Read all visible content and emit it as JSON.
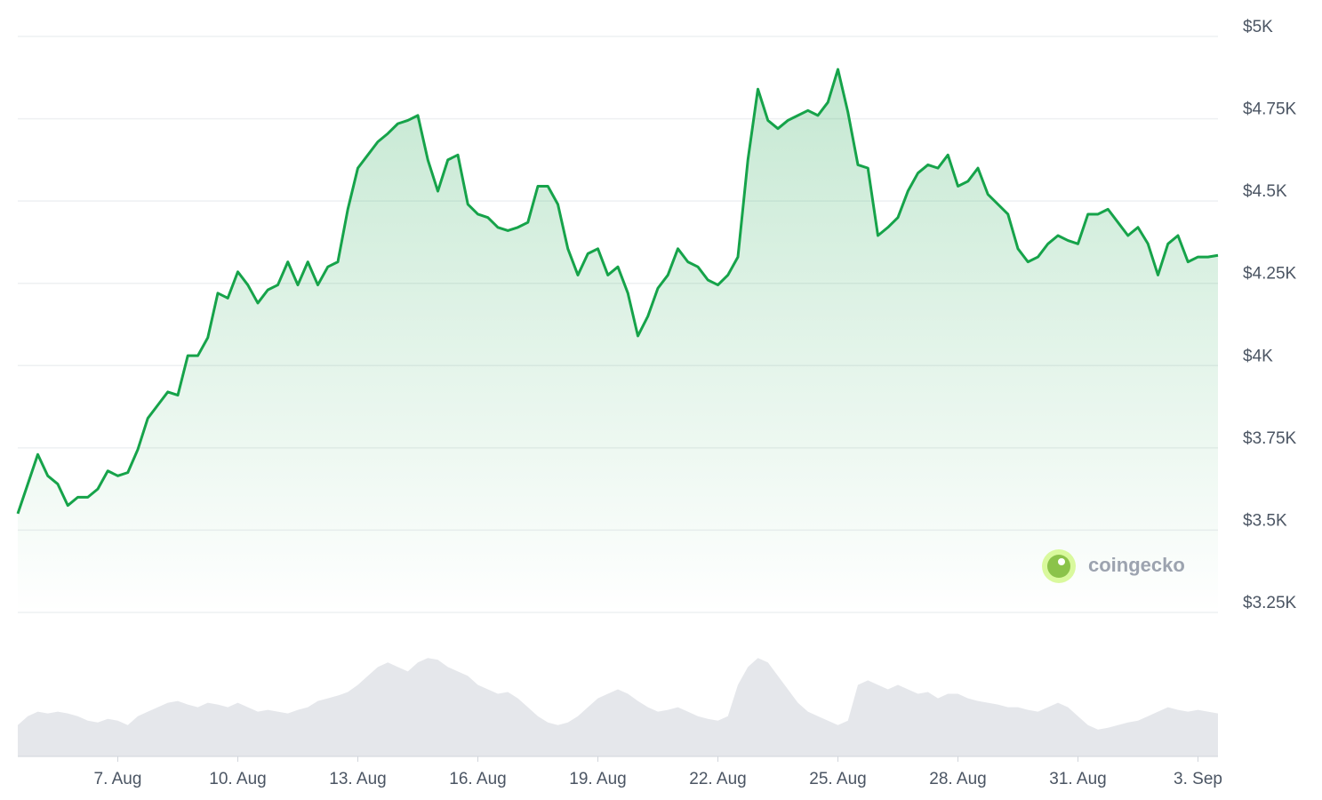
{
  "chart_data": {
    "type": "line",
    "watermark": "coingecko",
    "xlim": [
      0,
      120
    ],
    "xticks": [
      {
        "value": 10,
        "label": "7. Aug"
      },
      {
        "value": 22,
        "label": "10. Aug"
      },
      {
        "value": 34,
        "label": "13. Aug"
      },
      {
        "value": 46,
        "label": "16. Aug"
      },
      {
        "value": 58,
        "label": "19. Aug"
      },
      {
        "value": 70,
        "label": "22. Aug"
      },
      {
        "value": 82,
        "label": "25. Aug"
      },
      {
        "value": 94,
        "label": "28. Aug"
      },
      {
        "value": 106,
        "label": "31. Aug"
      },
      {
        "value": 118,
        "label": "3. Sep"
      }
    ],
    "ylim": [
      3250,
      5000
    ],
    "yticks": [
      {
        "value": 3250,
        "label": "$3.25K"
      },
      {
        "value": 3500,
        "label": "$3.5K"
      },
      {
        "value": 3750,
        "label": "$3.75K"
      },
      {
        "value": 4000,
        "label": "$4K"
      },
      {
        "value": 4250,
        "label": "$4.25K"
      },
      {
        "value": 4500,
        "label": "$4.5K"
      },
      {
        "value": 4750,
        "label": "$4.75K"
      },
      {
        "value": 5000,
        "label": "$5K"
      }
    ],
    "grid": true,
    "color": "#16a34a",
    "values": [
      3550,
      3640,
      3730,
      3665,
      3640,
      3575,
      3600,
      3600,
      3625,
      3680,
      3665,
      3675,
      3745,
      3840,
      3880,
      3920,
      3910,
      4030,
      4030,
      4085,
      4220,
      4205,
      4285,
      4245,
      4190,
      4230,
      4245,
      4315,
      4245,
      4315,
      4245,
      4300,
      4315,
      4475,
      4600,
      4640,
      4680,
      4705,
      4735,
      4745,
      4760,
      4625,
      4530,
      4625,
      4640,
      4490,
      4460,
      4450,
      4420,
      4410,
      4420,
      4435,
      4545,
      4545,
      4490,
      4355,
      4275,
      4340,
      4355,
      4275,
      4300,
      4220,
      4090,
      4150,
      4235,
      4275,
      4355,
      4315,
      4300,
      4260,
      4245,
      4275,
      4330,
      4625,
      4840,
      4745,
      4720,
      4745,
      4760,
      4775,
      4760,
      4800,
      4900,
      4770,
      4610,
      4600,
      4395,
      4420,
      4450,
      4530,
      4585,
      4610,
      4600,
      4640,
      4545,
      4560,
      4600,
      4520,
      4490,
      4460,
      4355,
      4315,
      4330,
      4370,
      4395,
      4380,
      4370,
      4460,
      4460,
      4475,
      4435,
      4395,
      4420,
      4370,
      4275,
      4370,
      4395,
      4315,
      4330,
      4330,
      4335
    ],
    "volume_color": "#e5e7eb",
    "y2lim": [
      0,
      150
    ],
    "volume": [
      35,
      45,
      50,
      48,
      50,
      48,
      45,
      40,
      38,
      42,
      40,
      35,
      45,
      50,
      55,
      60,
      62,
      58,
      55,
      60,
      58,
      55,
      60,
      55,
      50,
      52,
      50,
      48,
      52,
      55,
      62,
      65,
      68,
      72,
      80,
      90,
      100,
      105,
      100,
      95,
      105,
      110,
      108,
      100,
      95,
      90,
      80,
      75,
      70,
      72,
      65,
      55,
      45,
      38,
      35,
      38,
      45,
      55,
      65,
      70,
      75,
      70,
      62,
      55,
      50,
      52,
      55,
      50,
      45,
      42,
      40,
      45,
      80,
      100,
      110,
      105,
      90,
      75,
      60,
      50,
      45,
      40,
      35,
      40,
      80,
      85,
      80,
      75,
      80,
      75,
      70,
      72,
      65,
      70,
      70,
      65,
      62,
      60,
      58,
      55,
      55,
      52,
      50,
      55,
      60,
      55,
      45,
      35,
      30,
      32,
      35,
      38,
      40,
      45,
      50,
      55,
      52,
      50,
      52,
      50,
      48
    ]
  }
}
